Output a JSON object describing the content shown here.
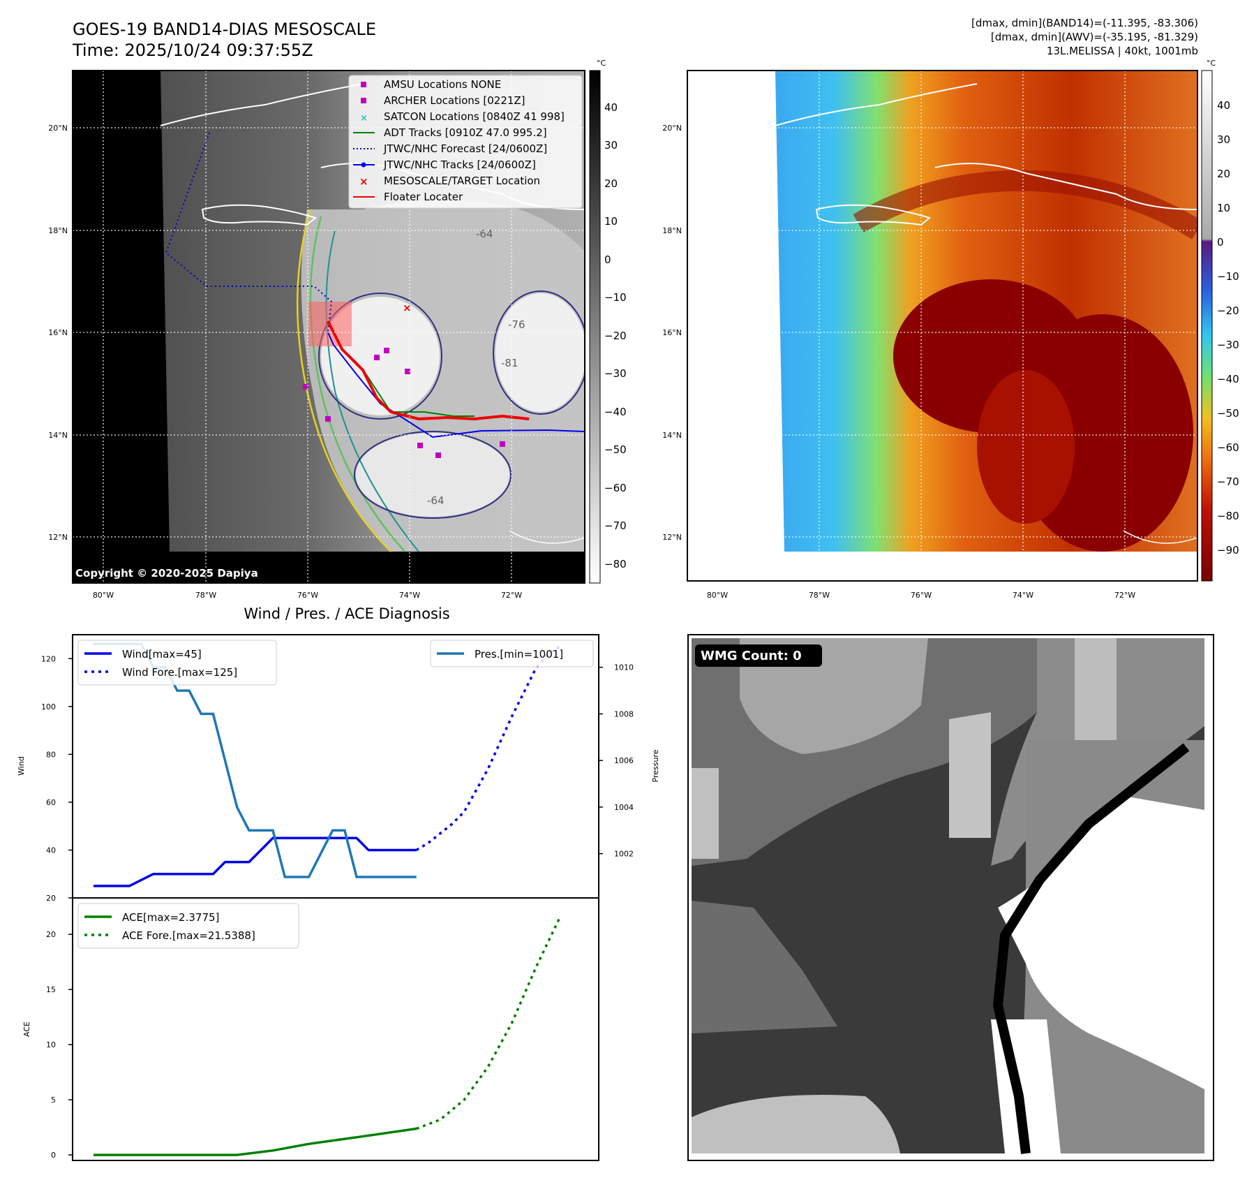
{
  "header": {
    "title_line1": "GOES-19 BAND14-DIAS MESOSCALE",
    "title_line2": "Time: 2025/10/24 09:37:55Z",
    "info_line1": "[dmax, dmin](BAND14)=(-11.395, -83.306)",
    "info_line2": "[dmax, dmin](AWV)=(-35.195, -81.329)",
    "info_line3": "13L.MELISSA | 40kt, 1001mb"
  },
  "map": {
    "lat_labels": [
      "20°N",
      "18°N",
      "16°N",
      "14°N",
      "12°N"
    ],
    "lon_labels": [
      "80°W",
      "78°W",
      "76°W",
      "74°W",
      "72°W"
    ],
    "copyright": "Copyright © 2020-2025 Dapiya",
    "contour_labels": [
      "-64",
      "-76",
      "-81",
      "-64"
    ]
  },
  "colorbar_gray": {
    "unit": "°C",
    "ticks": [
      "40",
      "30",
      "20",
      "10",
      "0",
      "−10",
      "−20",
      "−30",
      "−40",
      "−50",
      "−60",
      "−70",
      "−80"
    ]
  },
  "colorbar_color": {
    "unit": "°C",
    "ticks": [
      "40",
      "30",
      "20",
      "10",
      "0",
      "−10",
      "−20",
      "−30",
      "−40",
      "−50",
      "−60",
      "−70",
      "−80",
      "−90"
    ]
  },
  "legend": {
    "items": [
      "AMSU Locations NONE",
      "ARCHER Locations [0221Z]",
      "SATCON Locations [0840Z 41 998]",
      "ADT Tracks [0910Z 47.0 995.2]",
      "JTWC/NHC Forecast [24/0600Z]",
      "JTWC/NHC Tracks [24/0600Z]",
      "MESOSCALE/TARGET Location",
      "Floater Locater"
    ],
    "colors": [
      "#c000c0",
      "#c000c0",
      "#20c0c0",
      "#008000",
      "#0000cc",
      "#0000ee",
      "#ee0000",
      "#ee0000"
    ]
  },
  "wmg": {
    "label": "WMG Count: 0"
  },
  "chart_data": [
    {
      "type": "line",
      "title": "Wind / Pres. / ACE Diagnosis",
      "ylabel": "Wind",
      "ylabel_right": "Pressure",
      "ylim": [
        20,
        130
      ],
      "ylim_right": [
        1000.1,
        1011.4
      ],
      "yticks": [
        20,
        40,
        60,
        80,
        100,
        120
      ],
      "yticks_right": [
        1002,
        1004,
        1006,
        1008,
        1010
      ],
      "legend_left": [
        "Wind[max=45]",
        "Wind Fore.[max=125]"
      ],
      "legend_right": "Pres.[min=1001]",
      "series": [
        {
          "name": "Wind[max=45]",
          "color": "#0000ee",
          "x": [
            0,
            2,
            3,
            5,
            6,
            7,
            8,
            9,
            10,
            11,
            12,
            13,
            14,
            15,
            16,
            17,
            18,
            19,
            20,
            21,
            22,
            23,
            24,
            25,
            26,
            27
          ],
          "values": [
            25,
            25,
            25,
            30,
            30,
            30,
            30,
            30,
            30,
            35,
            35,
            35,
            40,
            45,
            45,
            45,
            45,
            45,
            45,
            45,
            45,
            40,
            40,
            40,
            40,
            40
          ]
        },
        {
          "name": "Wind Fore.[max=125]",
          "color": "#0000ee",
          "dashed": true,
          "x": [
            27,
            28,
            29,
            30,
            31,
            32,
            33,
            34,
            35,
            36,
            37,
            38,
            39
          ],
          "values": [
            40,
            43,
            47,
            51,
            56,
            65,
            74,
            85,
            96,
            106,
            116,
            122,
            125
          ]
        },
        {
          "name": "Pres.[min=1001]",
          "color": "#1f77b4",
          "axis": "right",
          "x": [
            0,
            4,
            5,
            6,
            7,
            8,
            9,
            10,
            11,
            12,
            13,
            14,
            15,
            16,
            17,
            18,
            19,
            20,
            21,
            22,
            23,
            24,
            25,
            26,
            27
          ],
          "values": [
            1011,
            1011,
            1010,
            1010,
            1009,
            1009,
            1008,
            1008,
            1006,
            1004,
            1003,
            1003,
            1003,
            1001,
            1001,
            1001,
            1002,
            1003,
            1003,
            1001,
            1001,
            1001,
            1001,
            1001,
            1001
          ]
        }
      ]
    },
    {
      "type": "line",
      "ylabel": "ACE",
      "ylim": [
        -0.5,
        23.3
      ],
      "yticks": [
        0,
        5,
        10,
        15,
        20
      ],
      "legend": [
        "ACE[max=2.3775]",
        "ACE Fore.[max=21.5388]"
      ],
      "series": [
        {
          "name": "ACE[max=2.3775]",
          "color": "#008000",
          "x": [
            0,
            5,
            10,
            12,
            15,
            18,
            22,
            27
          ],
          "values": [
            0,
            0,
            0,
            0,
            0.4,
            1.0,
            1.6,
            2.3775
          ]
        },
        {
          "name": "ACE Fore.[max=21.5388]",
          "color": "#008000",
          "dashed": true,
          "x": [
            27,
            29,
            31,
            33,
            35,
            37,
            39
          ],
          "values": [
            2.3775,
            3.2,
            5.0,
            8.0,
            12.0,
            17.0,
            21.5388
          ]
        }
      ]
    }
  ]
}
